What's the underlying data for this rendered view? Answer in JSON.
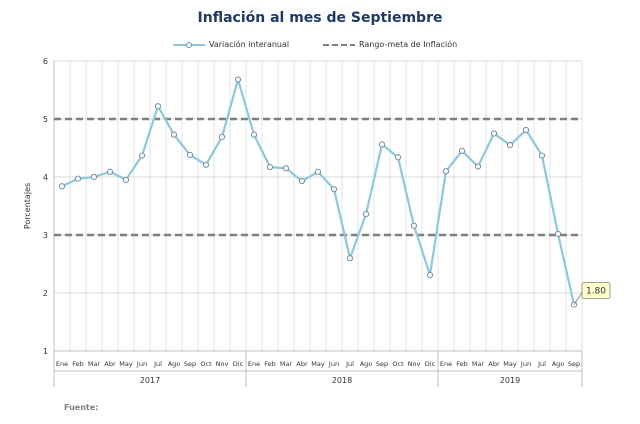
{
  "chart_data": {
    "type": "line",
    "title": "Inflación al mes de Septiembre",
    "ylabel": "Porcentajes",
    "ylim": [
      1,
      6
    ],
    "yticks": [
      1,
      2,
      3,
      4,
      5,
      6
    ],
    "grid": true,
    "legend_position": "top",
    "months": [
      "Ene",
      "Feb",
      "Mar",
      "Abr",
      "May",
      "Jun",
      "Jul",
      "Ago",
      "Sep",
      "Oct",
      "Nov",
      "Dic",
      "Ene",
      "Feb",
      "Mar",
      "Abr",
      "May",
      "Jun",
      "Jul",
      "Ago",
      "Sep",
      "Oct",
      "Nov",
      "Dic",
      "Ene",
      "Feb",
      "Mar",
      "Abr",
      "May",
      "Jun",
      "Jul",
      "Ago",
      "Sep"
    ],
    "years": [
      {
        "label": "2017",
        "months": 12
      },
      {
        "label": "2018",
        "months": 12
      },
      {
        "label": "2019",
        "months": 9
      }
    ],
    "series": [
      {
        "name": "Variación interanual",
        "color": "#8dc8dc",
        "values": [
          3.84,
          3.97,
          4.0,
          4.09,
          3.95,
          4.37,
          5.22,
          4.73,
          4.38,
          4.21,
          4.69,
          5.68,
          4.73,
          4.17,
          4.15,
          3.93,
          4.09,
          3.79,
          2.6,
          3.36,
          4.56,
          4.34,
          3.16,
          2.31,
          4.1,
          4.45,
          4.18,
          4.75,
          4.55,
          4.81,
          4.37,
          3.02,
          1.8
        ]
      },
      {
        "name": "Rango-meta de Inflación",
        "color": "#7f7f7f",
        "style": "dashed",
        "levels": [
          3,
          5
        ]
      }
    ],
    "annotation": {
      "label": "1.80",
      "color": "#ffffcc"
    }
  },
  "footer": {
    "source_label": "Fuente:"
  }
}
